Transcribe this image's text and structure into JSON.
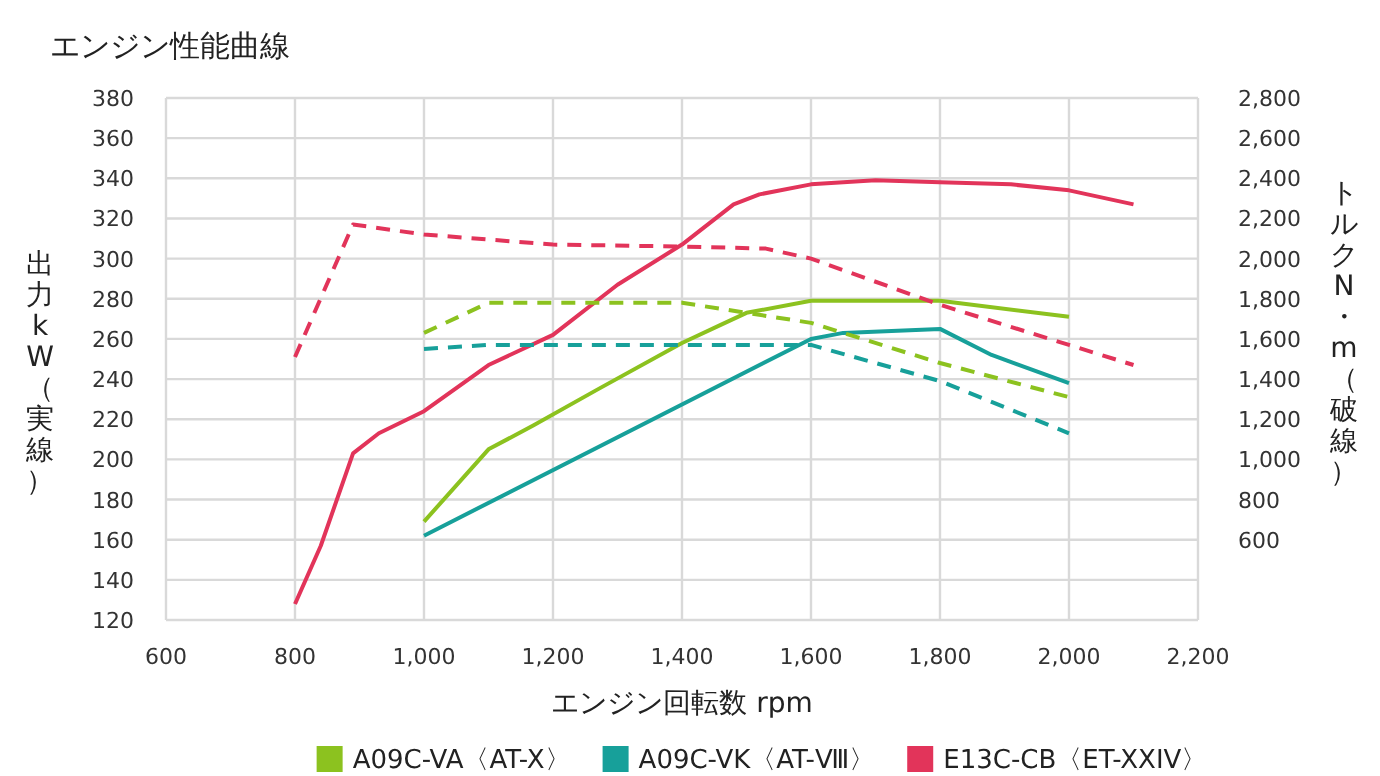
{
  "chart_data": {
    "type": "line",
    "title": "エンジン性能曲線",
    "xlabel": "エンジン回転数 rpm",
    "ylabel": "出力kW（実線）",
    "y2label": "トルクN・m（破線）",
    "xlim": [
      600,
      2200
    ],
    "xticks": [
      600,
      800,
      {
        "value": 1000,
        "label": "1,000"
      },
      {
        "value": 1200,
        "label": "1,200"
      },
      {
        "value": 1400,
        "label": "1,400"
      },
      {
        "value": 1600,
        "label": "1,600"
      },
      {
        "value": 1800,
        "label": "1,800"
      },
      {
        "value": 2000,
        "label": "2,000"
      },
      {
        "value": 2200,
        "label": "2,200"
      }
    ],
    "ylim": [
      120,
      380
    ],
    "yticks": [
      120,
      140,
      160,
      180,
      200,
      220,
      240,
      260,
      280,
      300,
      320,
      340,
      360,
      380
    ],
    "y2lim": [
      200,
      2800
    ],
    "y2ticks": [
      600,
      800,
      {
        "value": 1000,
        "label": "1,000"
      },
      {
        "value": 1200,
        "label": "1,200"
      },
      {
        "value": 1400,
        "label": "1,400"
      },
      {
        "value": 1600,
        "label": "1,600"
      },
      {
        "value": 1800,
        "label": "1,800"
      },
      {
        "value": 2000,
        "label": "2,000"
      },
      {
        "value": 2200,
        "label": "2,200"
      },
      {
        "value": 2400,
        "label": "2,400"
      },
      {
        "value": 2600,
        "label": "2,600"
      },
      {
        "value": 2800,
        "label": "2,800"
      }
    ],
    "grid": true,
    "legend": "bottom",
    "series": [
      {
        "name": "A09C-VA〈AT-X〉",
        "color": "#8cc21f",
        "line_style": "solid",
        "x": [
          1000,
          1100,
          1170,
          1270,
          1400,
          1460,
          1500,
          1600,
          1800,
          2000
        ],
        "values": [
          169,
          205,
          217,
          235,
          258,
          267,
          273,
          279,
          279,
          271
        ]
      },
      {
        "name": "A09C-VK〈AT-Ⅷ〉",
        "color": "#17a09a",
        "line_style": "solid",
        "x": [
          1000,
          1600,
          1650,
          1800,
          1880,
          2000
        ],
        "values": [
          162,
          260,
          263,
          265,
          252,
          238
        ]
      },
      {
        "name": "E13C-CB〈ET-XXIV〉",
        "color": "#e2345a",
        "line_style": "solid",
        "x": [
          800,
          840,
          890,
          930,
          1000,
          1100,
          1200,
          1300,
          1400,
          1480,
          1520,
          1600,
          1700,
          1800,
          1910,
          2000,
          2100
        ],
        "values": [
          128,
          157,
          203,
          213,
          224,
          247,
          262,
          287,
          307,
          327,
          332,
          337,
          339,
          338,
          337,
          334,
          327
        ]
      },
      {
        "color": "#8cc21f",
        "line_style": "dashed",
        "axis": "y2",
        "x": [
          1000,
          1100,
          1400,
          1600,
          1800,
          2000
        ],
        "values": [
          1630,
          1780,
          1780,
          1680,
          1480,
          1310
        ]
      },
      {
        "color": "#17a09a",
        "line_style": "dashed",
        "axis": "y2",
        "x": [
          1000,
          1100,
          1600,
          1800,
          2000
        ],
        "values": [
          1550,
          1570,
          1570,
          1390,
          1130
        ]
      },
      {
        "color": "#e2345a",
        "line_style": "dashed",
        "axis": "y2",
        "x": [
          800,
          890,
          1000,
          1200,
          1400,
          1530,
          1600,
          1800,
          2000,
          2100
        ],
        "values": [
          1510,
          2170,
          2120,
          2070,
          2060,
          2050,
          2000,
          1770,
          1570,
          1470
        ]
      }
    ]
  }
}
